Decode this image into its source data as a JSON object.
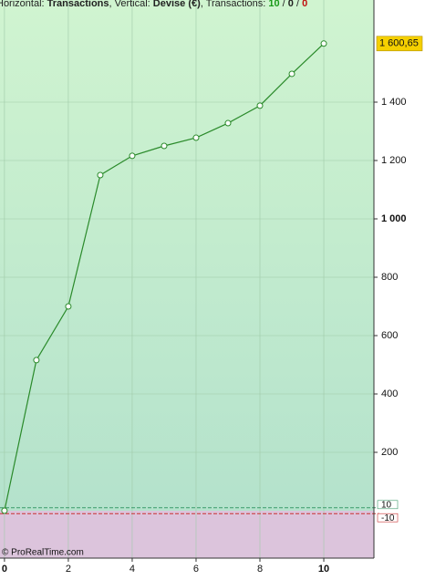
{
  "chart_data": {
    "type": "line",
    "title_parts": [
      {
        "text": "Horizontal: ",
        "bold": false,
        "color": "#222"
      },
      {
        "text": "Transactions",
        "bold": true,
        "color": "#222"
      },
      {
        "text": ", Vertical: ",
        "bold": false,
        "color": "#222"
      },
      {
        "text": "Devise (€)",
        "bold": true,
        "color": "#222"
      },
      {
        "text": ", Transactions: ",
        "bold": false,
        "color": "#222"
      },
      {
        "text": "10",
        "bold": true,
        "color": "#1a9a1a"
      },
      {
        "text": " / ",
        "bold": false,
        "color": "#222"
      },
      {
        "text": "0",
        "bold": true,
        "color": "#222"
      },
      {
        "text": " / ",
        "bold": false,
        "color": "#222"
      },
      {
        "text": "0",
        "bold": true,
        "color": "#c01010"
      }
    ],
    "watermark": "© ProRealTime.com",
    "x": [
      0,
      1,
      2,
      3,
      4,
      5,
      6,
      7,
      8,
      9,
      10
    ],
    "series": [
      {
        "color": "#2a8a2a",
        "values": [
          0,
          516,
          700,
          1150,
          1216,
          1250,
          1278,
          1328,
          1388,
          1497,
          1600.65
        ],
        "value_labels": [
          null,
          null,
          null,
          null,
          null,
          null,
          null,
          null,
          null,
          null,
          "1 600,65"
        ]
      }
    ],
    "xlim": [
      -0.14,
      11.57
    ],
    "ylim": [
      -162.5,
      1750
    ],
    "xticks": [
      {
        "value": 0,
        "label": "0",
        "bold": true
      },
      2,
      4,
      6,
      8,
      {
        "value": 10,
        "label": "10",
        "bold": true
      }
    ],
    "yticks": [
      200,
      400,
      600,
      800,
      {
        "value": 1000,
        "label": "1 000",
        "bold": true
      },
      {
        "value": 1200,
        "label": "1 200"
      },
      {
        "value": 1400,
        "label": "1 400"
      }
    ],
    "reference_lines": [
      {
        "value": 10,
        "label": "10",
        "color": "#3a9a6a"
      },
      {
        "value": -10,
        "label": "-10",
        "color": "#c83030"
      }
    ],
    "grid": true
  }
}
